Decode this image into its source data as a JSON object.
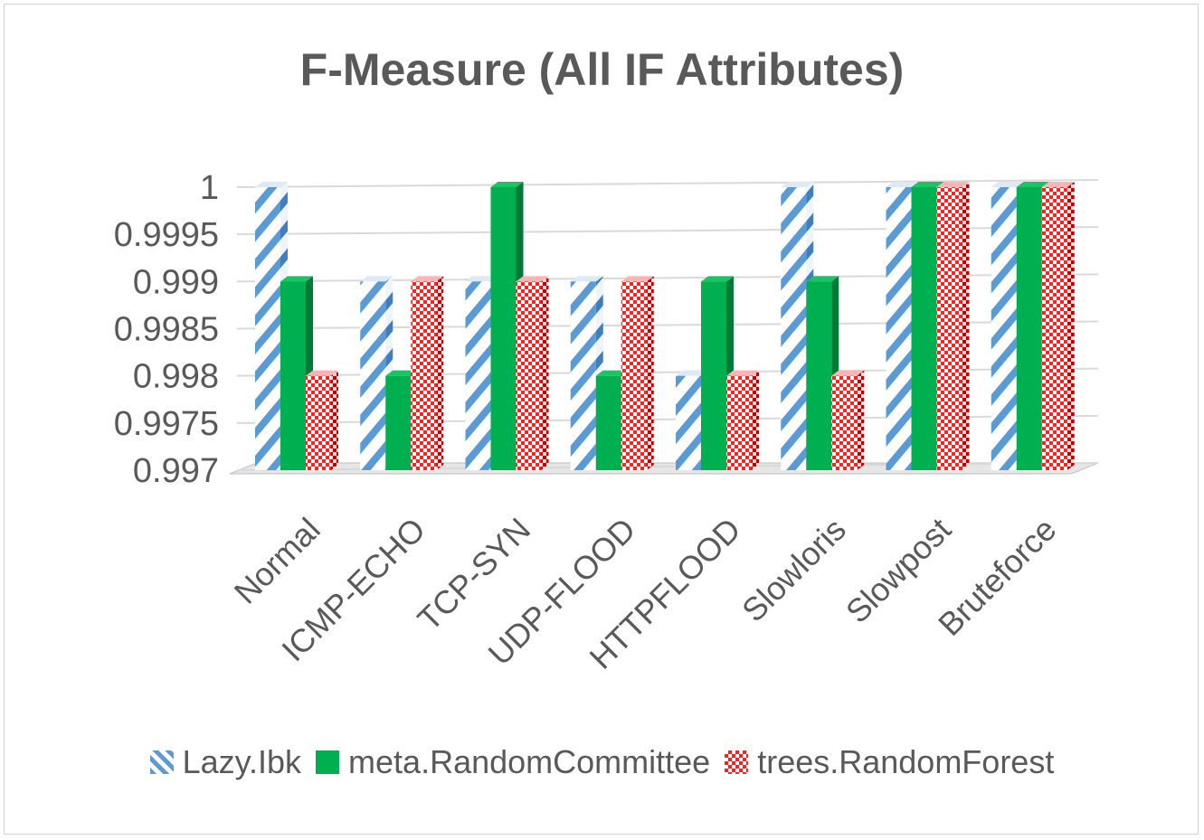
{
  "chart_data": {
    "type": "bar",
    "title": "F-Measure (All IF Attributes)",
    "categories": [
      "Normal",
      "ICMP-ECHO",
      "TCP-SYN",
      "UDP-FLOOD",
      "HTTPFLOOD",
      "Slowloris",
      "Slowpost",
      "Bruteforce"
    ],
    "series": [
      {
        "name": "Lazy.Ibk",
        "values": [
          1,
          0.999,
          0.999,
          0.999,
          0.998,
          1,
          1,
          1
        ],
        "color": "#5b9bd5",
        "pattern": "diagonal-stripes"
      },
      {
        "name": "meta.RandomCommittee",
        "values": [
          0.999,
          0.998,
          1,
          0.998,
          0.999,
          0.999,
          1,
          1
        ],
        "color": "#00b050",
        "pattern": "solid"
      },
      {
        "name": "trees.RandomForest",
        "values": [
          0.998,
          0.999,
          0.999,
          0.999,
          0.998,
          0.998,
          1,
          1
        ],
        "color": "#ff0000",
        "pattern": "checker"
      }
    ],
    "y_ticks": [
      "1",
      "0.9995",
      "0.999",
      "0.9985",
      "0.998",
      "0.9975",
      "0.997"
    ],
    "ylim": [
      0.997,
      1
    ],
    "grid": true,
    "legend_position": "bottom",
    "bar_style": "3d-clustered"
  }
}
